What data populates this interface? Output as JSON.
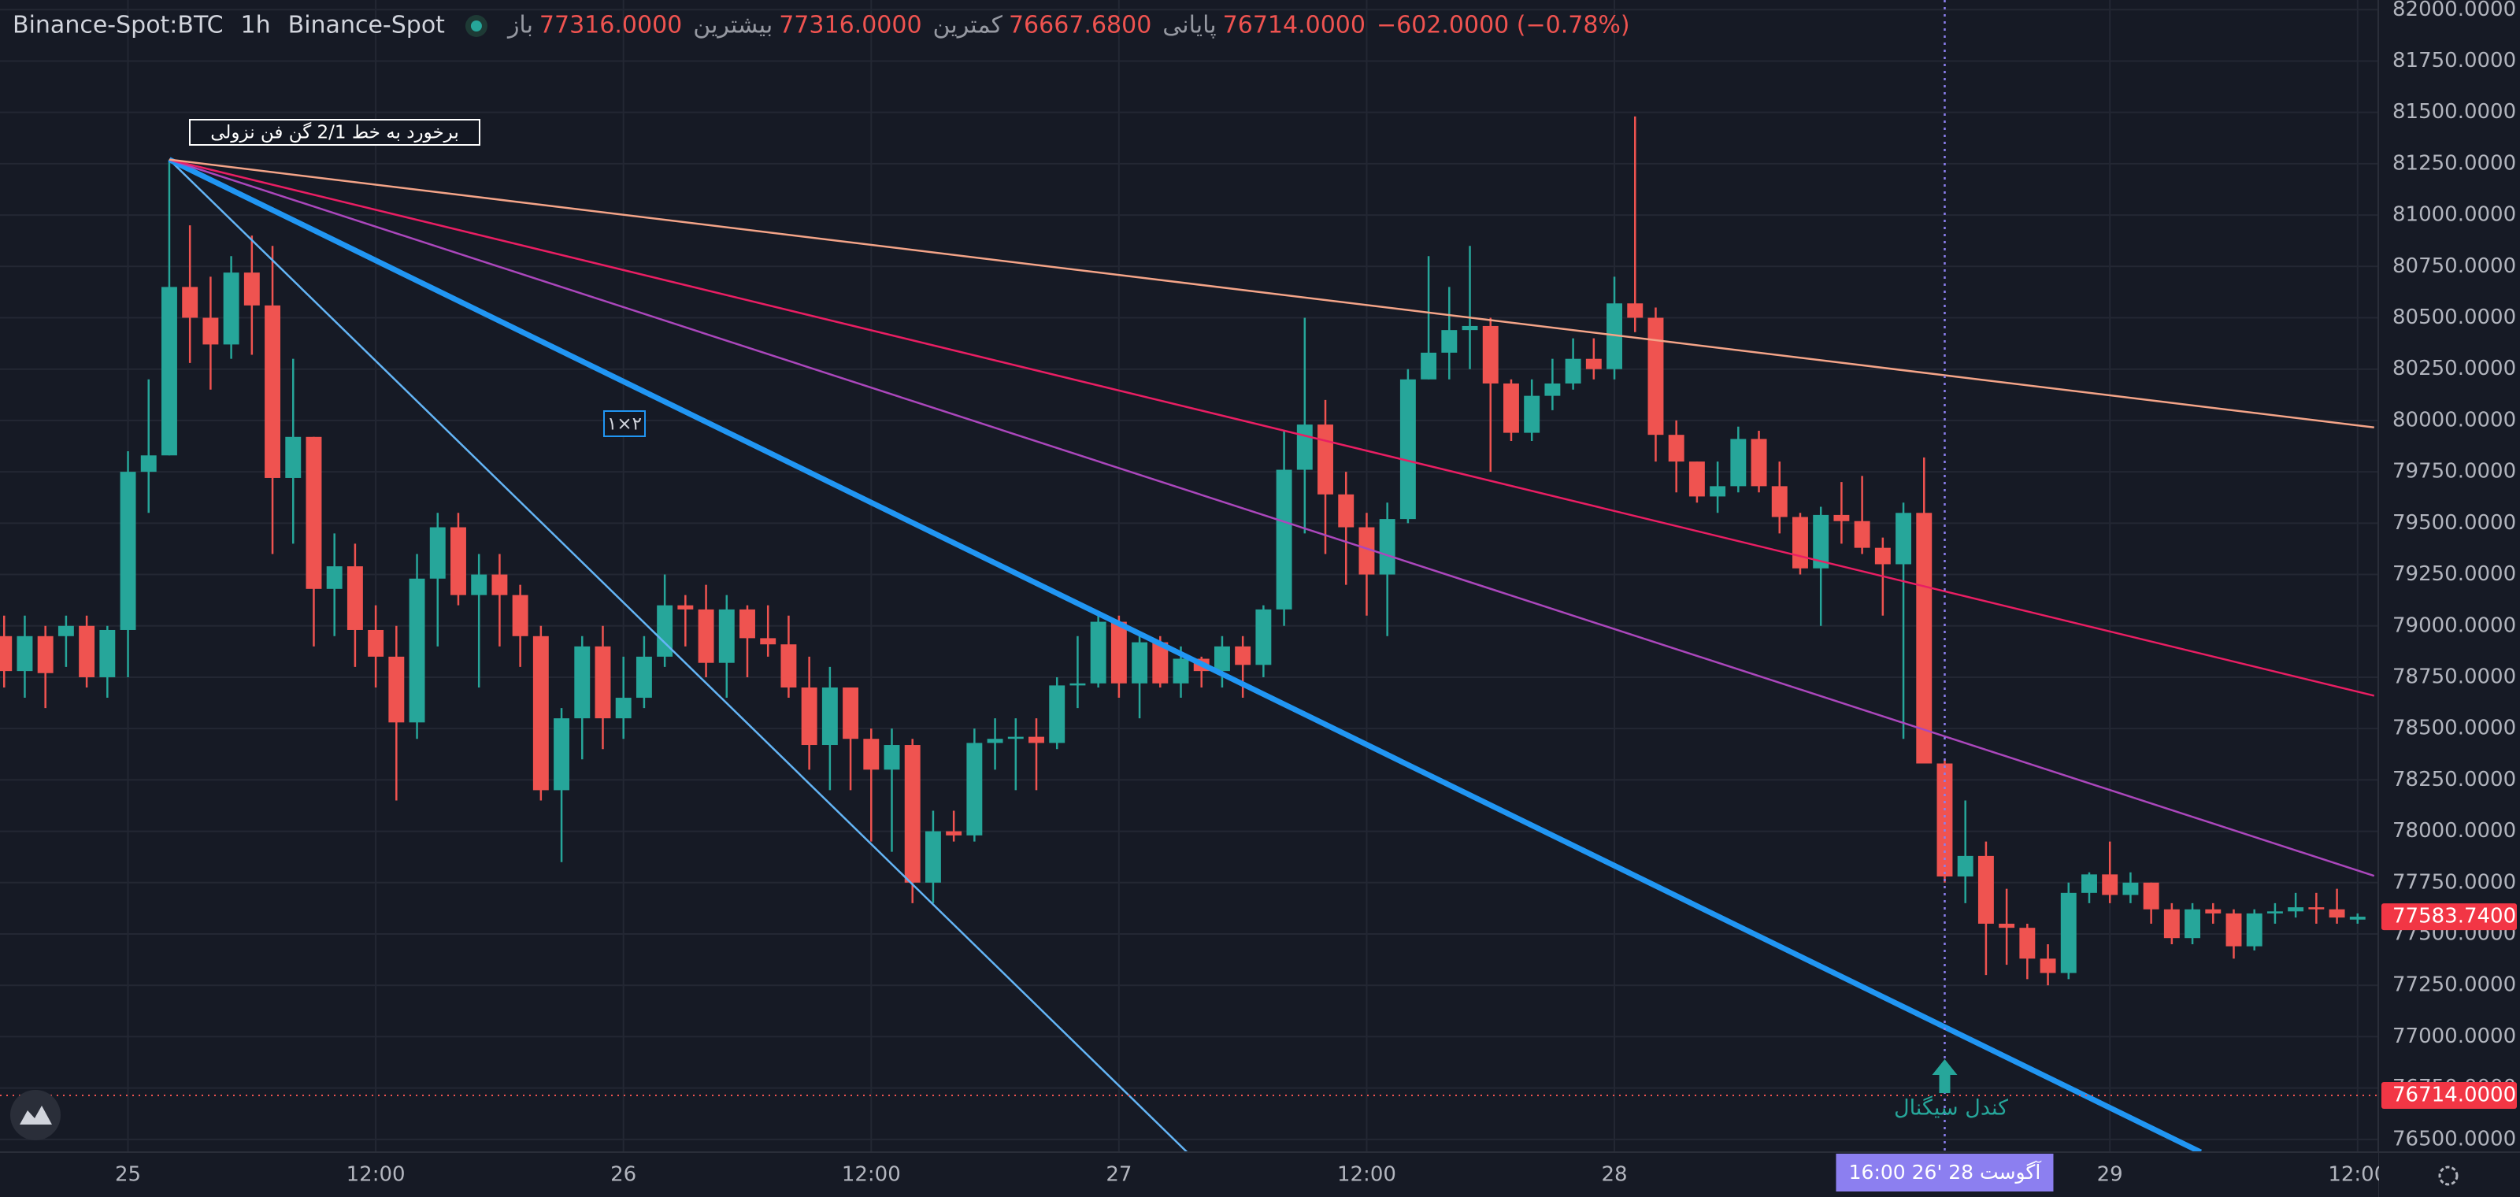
{
  "header": {
    "symbol": "Binance-Spot:BTC",
    "interval": "1h",
    "exchange": "Binance-Spot",
    "ohlc": [
      {
        "label": "باز",
        "value": "77316.0000"
      },
      {
        "label": "بیشترین",
        "value": "77316.0000"
      },
      {
        "label": "کمترین",
        "value": "76667.6800"
      },
      {
        "label": "پایانی",
        "value": "76714.0000"
      }
    ],
    "change": "−602.0000 (−0.78%)"
  },
  "chart_data": {
    "type": "candlestick",
    "up_color": "#26a69a",
    "down_color": "#ef5350",
    "grid": true,
    "xlim": [
      -0.2,
      115
    ],
    "ylim": [
      76438,
      82047
    ],
    "xticks": [
      {
        "value": 6,
        "label": "25"
      },
      {
        "value": 18,
        "label": "12:00"
      },
      {
        "value": 30,
        "label": "26"
      },
      {
        "value": 42,
        "label": "12:00"
      },
      {
        "value": 54,
        "label": "27"
      },
      {
        "value": 66,
        "label": "12:00"
      },
      {
        "value": 78,
        "label": "28"
      },
      {
        "value": 102,
        "label": "29"
      },
      {
        "value": 114,
        "label": "12:00"
      }
    ],
    "yticks": [
      {
        "value": 76500,
        "label": "76500.0000"
      },
      {
        "value": 76750,
        "label": "76750.0000"
      },
      {
        "value": 77000,
        "label": "77000.0000"
      },
      {
        "value": 77250,
        "label": "77250.0000"
      },
      {
        "value": 77500,
        "label": "77500.0000"
      },
      {
        "value": 77750,
        "label": "77750.0000"
      },
      {
        "value": 78000,
        "label": "78000.0000"
      },
      {
        "value": 78250,
        "label": "78250.0000"
      },
      {
        "value": 78500,
        "label": "78500.0000"
      },
      {
        "value": 78750,
        "label": "78750.0000"
      },
      {
        "value": 79000,
        "label": "79000.0000"
      },
      {
        "value": 79250,
        "label": "79250.0000"
      },
      {
        "value": 79500,
        "label": "79500.0000"
      },
      {
        "value": 79750,
        "label": "79750.0000"
      },
      {
        "value": 80000,
        "label": "80000.0000"
      },
      {
        "value": 80250,
        "label": "80250.0000"
      },
      {
        "value": 80500,
        "label": "80500.0000"
      },
      {
        "value": 80750,
        "label": "80750.0000"
      },
      {
        "value": 81000,
        "label": "81000.0000"
      },
      {
        "value": 81250,
        "label": "81250.0000"
      },
      {
        "value": 81500,
        "label": "81500.0000"
      },
      {
        "value": 81750,
        "label": "81750.0000"
      },
      {
        "value": 82000,
        "label": "82000.0000"
      }
    ],
    "open": [
      78950,
      78780,
      78950,
      78950,
      79000,
      78750,
      78980,
      79750,
      79830,
      80650,
      80500,
      80370,
      80720,
      80560,
      79720,
      79920,
      79180,
      79290,
      78980,
      78850,
      78530,
      79230,
      79480,
      79150,
      79250,
      79150,
      78950,
      78200,
      78550,
      78900,
      78550,
      78650,
      78850,
      79100,
      79080,
      78820,
      79080,
      78940,
      78910,
      78700,
      78420,
      78700,
      78450,
      78300,
      78420,
      77750,
      78000,
      77980,
      78430,
      78450,
      78460,
      78430,
      78710,
      78720,
      79020,
      78720,
      78920,
      78720,
      78840,
      78780,
      78900,
      78810,
      79080,
      79760,
      79980,
      79640,
      79480,
      79250,
      79520,
      80200,
      80330,
      80440,
      80460,
      80180,
      79940,
      80120,
      80180,
      80300,
      80250,
      80570,
      80500,
      79930,
      79800,
      79630,
      79680,
      79910,
      79680,
      79530,
      79280,
      79540,
      79510,
      79380,
      79300,
      79550,
      78330,
      77780,
      77880,
      77550,
      77530,
      77380,
      77310,
      77700,
      77790,
      77690,
      77750,
      77620,
      77480,
      77620,
      77600,
      77440,
      77600,
      77610,
      77630,
      77620,
      77570
    ],
    "high": [
      79050,
      79050,
      79000,
      79050,
      79050,
      79000,
      79850,
      80200,
      81270,
      80950,
      80700,
      80800,
      80900,
      80850,
      80300,
      79920,
      79450,
      79400,
      79100,
      79000,
      79350,
      79550,
      79550,
      79350,
      79350,
      79200,
      79000,
      78600,
      78950,
      79000,
      78850,
      78950,
      79250,
      79150,
      79200,
      79150,
      79100,
      79100,
      79050,
      78850,
      78800,
      78700,
      78500,
      78500,
      78450,
      78100,
      78100,
      78500,
      78550,
      78550,
      78550,
      78750,
      78950,
      79050,
      79050,
      78950,
      78950,
      78900,
      78850,
      78950,
      78950,
      79100,
      79950,
      80500,
      80100,
      79750,
      79550,
      79600,
      80250,
      80800,
      80650,
      80850,
      80500,
      80200,
      80200,
      80300,
      80400,
      80400,
      80700,
      81480,
      80550,
      80000,
      79800,
      79800,
      79970,
      79950,
      79800,
      79550,
      79580,
      79700,
      79730,
      79430,
      79600,
      79820,
      78350,
      78150,
      77950,
      77720,
      77550,
      77450,
      77750,
      77800,
      77950,
      77800,
      77750,
      77650,
      77650,
      77650,
      77620,
      77620,
      77650,
      77700,
      77700,
      77720,
      77600
    ],
    "low": [
      78700,
      78650,
      78600,
      78800,
      78700,
      78650,
      78750,
      79550,
      79830,
      80280,
      80150,
      80300,
      80320,
      79350,
      79400,
      78900,
      78950,
      78800,
      78700,
      78150,
      78450,
      78900,
      79100,
      78700,
      78900,
      78800,
      78150,
      77850,
      78350,
      78400,
      78450,
      78600,
      78800,
      78900,
      78750,
      78650,
      78750,
      78850,
      78650,
      78300,
      78200,
      78200,
      77950,
      77900,
      77650,
      77650,
      77950,
      77950,
      78300,
      78200,
      78200,
      78400,
      78600,
      78700,
      78650,
      78550,
      78700,
      78650,
      78700,
      78700,
      78650,
      78750,
      79000,
      79450,
      79350,
      79200,
      79050,
      78950,
      79500,
      80200,
      80200,
      80250,
      79750,
      79900,
      79900,
      80050,
      80150,
      80200,
      80200,
      80430,
      79800,
      79650,
      79600,
      79550,
      79650,
      79650,
      79450,
      79250,
      79000,
      79400,
      79350,
      79050,
      78450,
      78330,
      77750,
      77650,
      77300,
      77350,
      77280,
      77250,
      77280,
      77650,
      77650,
      77650,
      77550,
      77450,
      77450,
      77550,
      77380,
      77420,
      77550,
      77580,
      77550,
      77550,
      77550
    ],
    "close": [
      78780,
      78950,
      78770,
      79000,
      78750,
      78980,
      79750,
      79830,
      80650,
      80500,
      80370,
      80720,
      80560,
      79720,
      79920,
      79180,
      79290,
      78980,
      78850,
      78530,
      79230,
      79480,
      79150,
      79250,
      79150,
      78950,
      78200,
      78550,
      78900,
      78550,
      78650,
      78850,
      79100,
      79080,
      78820,
      79080,
      78940,
      78910,
      78700,
      78420,
      78700,
      78450,
      78300,
      78420,
      77750,
      78000,
      77980,
      78430,
      78450,
      78460,
      78430,
      78710,
      78720,
      79020,
      78720,
      78920,
      78720,
      78840,
      78780,
      78900,
      78810,
      79080,
      79760,
      79980,
      79640,
      79480,
      79250,
      79520,
      80200,
      80330,
      80440,
      80460,
      80180,
      79940,
      80120,
      80180,
      80300,
      80250,
      80570,
      80500,
      79930,
      79800,
      79630,
      79680,
      79910,
      79680,
      79530,
      79280,
      79540,
      79510,
      79380,
      79300,
      79550,
      78330,
      77780,
      77880,
      77550,
      77530,
      77380,
      77310,
      77700,
      77790,
      77690,
      77750,
      77620,
      77480,
      77620,
      77600,
      77440,
      77600,
      77610,
      77630,
      77620,
      77580,
      77584
    ],
    "fan_lines": [
      {
        "color": "#64b5f6",
        "points": [
          [
            8,
            81270
          ],
          [
            57.3,
            76438
          ]
        ]
      },
      {
        "color": "#2196f3",
        "points": [
          [
            8,
            81270
          ],
          [
            106.4,
            76438
          ]
        ]
      },
      {
        "color": "#ab47bc",
        "points": [
          [
            8,
            81270
          ],
          [
            114.8,
            77783
          ]
        ]
      },
      {
        "color": "#e91e63",
        "points": [
          [
            8,
            81270
          ],
          [
            114.8,
            78660
          ]
        ]
      },
      {
        "color": "#f4a488",
        "points": [
          [
            8,
            81270
          ],
          [
            114.8,
            79966
          ]
        ]
      }
    ],
    "annotations": {
      "fan_note": "برخورد به خط 2/1 گن فن نزولی",
      "ratio": "۱×۲",
      "signal": "کندل سیگنال"
    },
    "last_price": {
      "value": 77583.74,
      "label": "77583.7400"
    },
    "crosshair": {
      "index": 94,
      "price": 76714,
      "price_label": "76714.0000",
      "time_label": "16:00  26' آگوست 28"
    }
  }
}
